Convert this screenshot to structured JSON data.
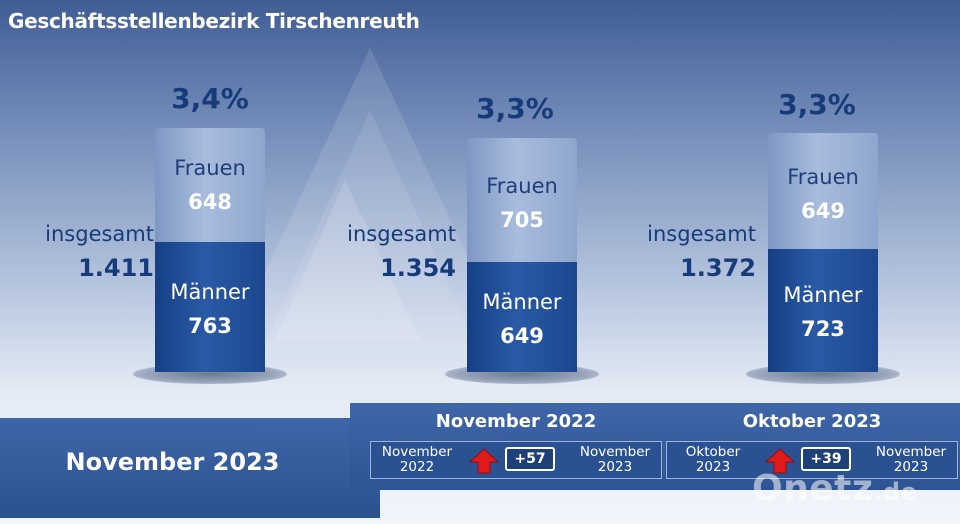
{
  "title": "Geschäftsstellenbezirk Tirschenreuth",
  "colors": {
    "frauen": "#9fb4da",
    "maenner": "#1e4a90",
    "text_dark": "#163b7a",
    "arrow_up": "#e11b1b"
  },
  "chart_data": {
    "type": "bar",
    "stacked": true,
    "categories": [
      "November 2023",
      "November 2022",
      "Oktober 2023"
    ],
    "series": [
      {
        "name": "Frauen",
        "values": [
          648,
          705,
          649
        ]
      },
      {
        "name": "Männer",
        "values": [
          763,
          649,
          723
        ]
      }
    ],
    "totals": [
      1411,
      1354,
      1372
    ],
    "rates_percent": [
      3.4,
      3.3,
      3.3
    ]
  },
  "labels": {
    "frauen": "Frauen",
    "maenner": "Männer",
    "insgesamt": "insgesamt"
  },
  "groups": [
    {
      "pct": "3,4%",
      "frauen": "648",
      "maenner": "763",
      "total": "1.411"
    },
    {
      "pct": "3,3%",
      "frauen": "705",
      "maenner": "649",
      "total": "1.354"
    },
    {
      "pct": "3,3%",
      "frauen": "649",
      "maenner": "723",
      "total": "1.372"
    }
  ],
  "main_period": "November 2023",
  "comparisons": [
    {
      "title": "November 2022",
      "from_line1": "November",
      "from_line2": "2022",
      "delta": "+57",
      "to_line1": "November",
      "to_line2": "2023",
      "direction": "up-arrow-icon"
    },
    {
      "title": "Oktober 2023",
      "from_line1": "Oktober",
      "from_line2": "2023",
      "delta": "+39",
      "to_line1": "November",
      "to_line2": "2023",
      "direction": "up-arrow-icon"
    }
  ],
  "logo": {
    "text": "Onetz",
    "tld": ".de"
  }
}
